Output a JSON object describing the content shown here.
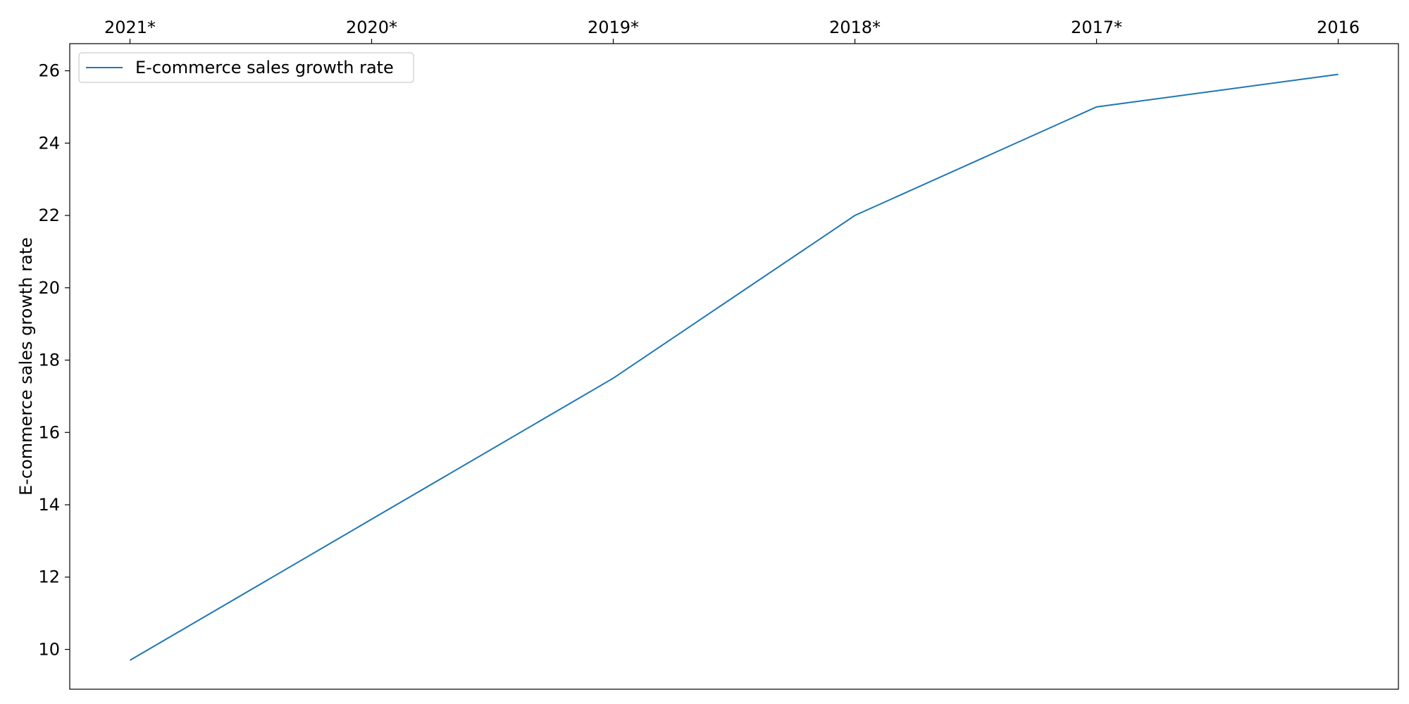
{
  "chart_data": {
    "type": "line",
    "title": "",
    "xlabel": "",
    "ylabel": "E-commerce sales growth rate",
    "x_axis_position": "top",
    "categories": [
      "2021*",
      "2020*",
      "2019*",
      "2018*",
      "2017*",
      "2016"
    ],
    "series": [
      {
        "name": "E-commerce sales growth rate",
        "values": [
          9.7,
          13.6,
          17.5,
          22.0,
          25.0,
          25.9
        ],
        "color": "#1f77b4"
      }
    ],
    "ylim": [
      8.9,
      26.75
    ],
    "yticks": [
      10,
      12,
      14,
      16,
      18,
      20,
      22,
      24,
      26
    ],
    "grid": false,
    "legend_position": "upper-left"
  }
}
